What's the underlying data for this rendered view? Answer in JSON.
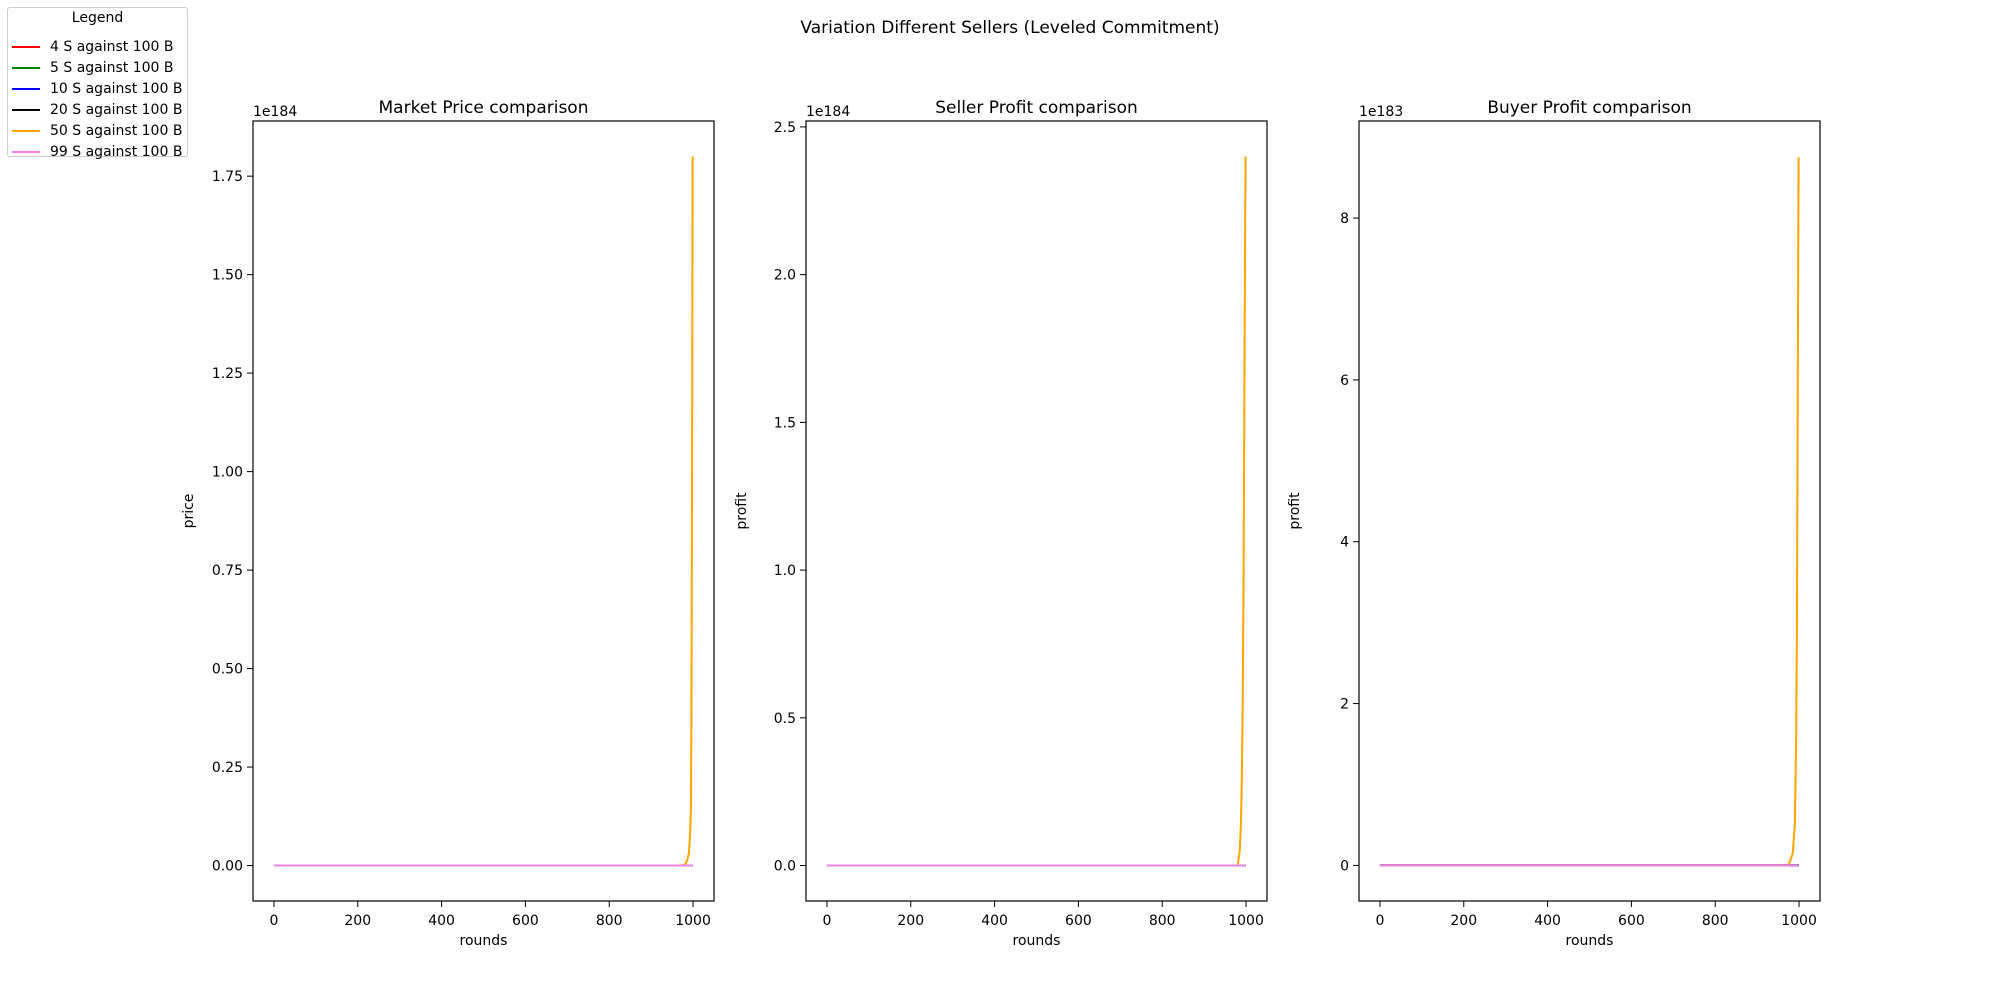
{
  "figure_title": "Variation Different Sellers (Leveled Commitment)",
  "legend": {
    "title": "Legend",
    "entries": [
      {
        "label": "4 S against 100 B",
        "color": "#ff0000"
      },
      {
        "label": "5 S against 100 B",
        "color": "#008000"
      },
      {
        "label": "10 S against 100 B",
        "color": "#0000ff"
      },
      {
        "label": "20 S against 100 B",
        "color": "#000000"
      },
      {
        "label": "50 S against 100 B",
        "color": "#ffa500"
      },
      {
        "label": "99 S against 100 B",
        "color": "#ee82ee"
      }
    ]
  },
  "chart_data": [
    {
      "type": "line",
      "title": "Market Price comparison",
      "xlabel": "rounds",
      "ylabel": "price",
      "offset_text": "1e184",
      "xlim": [
        -50,
        1050
      ],
      "ylim": [
        -0.09,
        1.89
      ],
      "xticks": [
        0,
        200,
        400,
        600,
        800,
        1000
      ],
      "xtick_labels": [
        "0",
        "200",
        "400",
        "600",
        "800",
        "1000"
      ],
      "yticks": [
        0,
        0.25,
        0.5,
        0.75,
        1.0,
        1.25,
        1.5,
        1.75
      ],
      "ytick_labels": [
        "0.00",
        "0.25",
        "0.50",
        "0.75",
        "1.00",
        "1.25",
        "1.50",
        "1.75"
      ],
      "series": [
        {
          "name": "4 S against 100 B",
          "color": "#ff0000",
          "x": [
            0,
            999
          ],
          "y": [
            0,
            0
          ]
        },
        {
          "name": "5 S against 100 B",
          "color": "#008000",
          "x": [
            0,
            999
          ],
          "y": [
            0,
            0
          ]
        },
        {
          "name": "10 S against 100 B",
          "color": "#0000ff",
          "x": [
            0,
            999
          ],
          "y": [
            0,
            0
          ]
        },
        {
          "name": "20 S against 100 B",
          "color": "#000000",
          "x": [
            0,
            999
          ],
          "y": [
            0,
            0
          ]
        },
        {
          "name": "50 S against 100 B",
          "color": "#ffa500",
          "x": [
            0,
            970,
            980,
            985,
            990,
            993,
            995,
            996,
            997,
            998,
            999
          ],
          "y": [
            0,
            0,
            0.002,
            0.01,
            0.03,
            0.08,
            0.15,
            0.35,
            0.7,
            1.2,
            1.8
          ]
        },
        {
          "name": "99 S against 100 B",
          "color": "#ee82ee",
          "x": [
            0,
            999
          ],
          "y": [
            0,
            0
          ]
        }
      ]
    },
    {
      "type": "line",
      "title": "Seller Profit comparison",
      "xlabel": "rounds",
      "ylabel": "profit",
      "offset_text": "1e184",
      "xlim": [
        -50,
        1050
      ],
      "ylim": [
        -0.12,
        2.52
      ],
      "xticks": [
        0,
        200,
        400,
        600,
        800,
        1000
      ],
      "xtick_labels": [
        "0",
        "200",
        "400",
        "600",
        "800",
        "1000"
      ],
      "yticks": [
        0,
        0.5,
        1.0,
        1.5,
        2.0,
        2.5
      ],
      "ytick_labels": [
        "0.0",
        "0.5",
        "1.0",
        "1.5",
        "2.0",
        "2.5"
      ],
      "series": [
        {
          "name": "4 S against 100 B",
          "color": "#ff0000",
          "x": [
            0,
            999
          ],
          "y": [
            0,
            0
          ]
        },
        {
          "name": "5 S against 100 B",
          "color": "#008000",
          "x": [
            0,
            999
          ],
          "y": [
            0,
            0
          ]
        },
        {
          "name": "10 S against 100 B",
          "color": "#0000ff",
          "x": [
            0,
            999
          ],
          "y": [
            0,
            0
          ]
        },
        {
          "name": "20 S against 100 B",
          "color": "#000000",
          "x": [
            0,
            999
          ],
          "y": [
            0,
            0
          ]
        },
        {
          "name": "50 S against 100 B",
          "color": "#ffa500",
          "x": [
            0,
            980,
            985,
            988,
            990,
            992,
            994,
            995,
            996,
            997,
            998,
            999
          ],
          "y": [
            0,
            0,
            0.05,
            0.15,
            0.3,
            0.55,
            0.95,
            1.25,
            1.6,
            1.9,
            2.2,
            2.4
          ]
        },
        {
          "name": "99 S against 100 B",
          "color": "#ee82ee",
          "x": [
            0,
            999
          ],
          "y": [
            0,
            0
          ]
        }
      ]
    },
    {
      "type": "line",
      "title": "Buyer Profit comparison",
      "xlabel": "rounds",
      "ylabel": "profit",
      "offset_text": "1e183",
      "xlim": [
        -50,
        1050
      ],
      "ylim": [
        -0.44,
        9.2
      ],
      "xticks": [
        0,
        200,
        400,
        600,
        800,
        1000
      ],
      "xtick_labels": [
        "0",
        "200",
        "400",
        "600",
        "800",
        "1000"
      ],
      "yticks": [
        0,
        2,
        4,
        6,
        8
      ],
      "ytick_labels": [
        "0",
        "2",
        "4",
        "6",
        "8"
      ],
      "series": [
        {
          "name": "4 S against 100 B",
          "color": "#ff0000",
          "x": [
            0,
            999
          ],
          "y": [
            0,
            0
          ]
        },
        {
          "name": "5 S against 100 B",
          "color": "#008000",
          "x": [
            0,
            999
          ],
          "y": [
            0,
            0
          ]
        },
        {
          "name": "10 S against 100 B",
          "color": "#0000ff",
          "x": [
            0,
            999
          ],
          "y": [
            0,
            0
          ]
        },
        {
          "name": "20 S against 100 B",
          "color": "#000000",
          "x": [
            0,
            999
          ],
          "y": [
            0,
            0
          ]
        },
        {
          "name": "50 S against 100 B",
          "color": "#ffa500",
          "x": [
            0,
            975,
            985,
            990,
            993,
            995,
            996,
            997,
            998,
            999
          ],
          "y": [
            0,
            0,
            0.15,
            0.5,
            1.5,
            3.0,
            4.5,
            6.0,
            7.5,
            8.75
          ]
        },
        {
          "name": "99 S against 100 B",
          "color": "#ee82ee",
          "x": [
            0,
            999
          ],
          "y": [
            0,
            0
          ]
        }
      ]
    }
  ]
}
